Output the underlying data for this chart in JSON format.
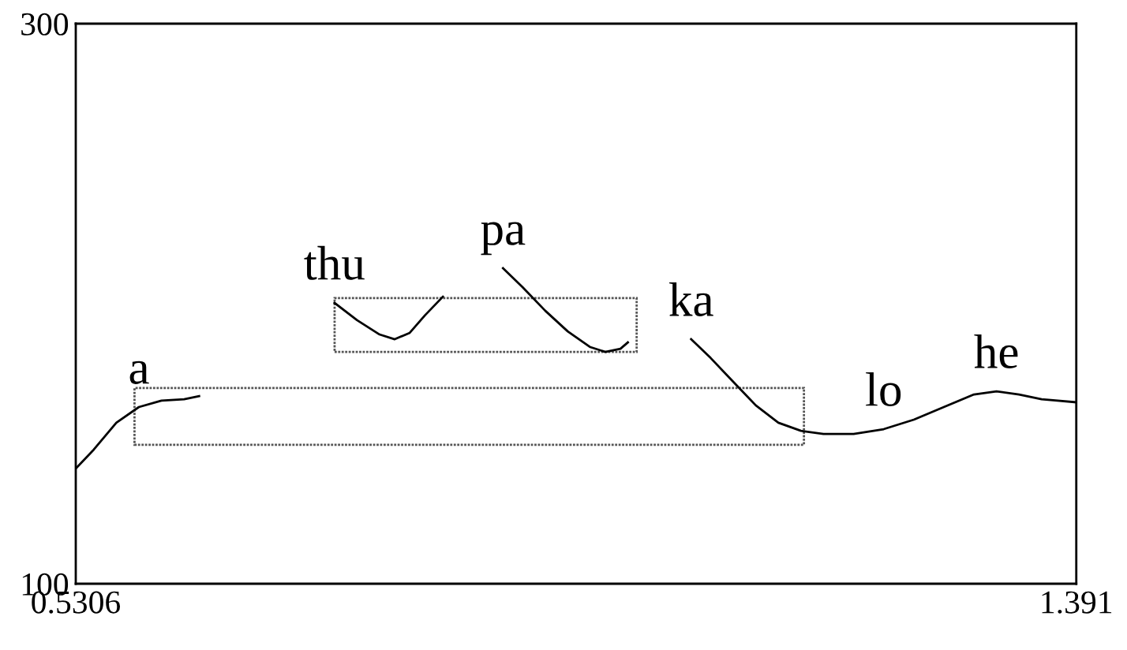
{
  "chart_data": {
    "type": "line",
    "xlim": [
      0.5306,
      1.391
    ],
    "ylim": [
      100,
      300
    ],
    "xticks": [
      0.5306,
      1.391
    ],
    "yticks": [
      100,
      300
    ],
    "grid": false,
    "marker": "none",
    "series": [
      {
        "color": "#000000",
        "line_style": "solid",
        "x": [
          0.5306,
          0.5461,
          0.5655,
          0.5849,
          0.6043,
          0.6238,
          0.6367
        ],
        "values": [
          141.1,
          147.9,
          157.5,
          163.1,
          165.4,
          165.9,
          167.0
        ]
      },
      {
        "color": "#000000",
        "line_style": "solid",
        "x": [
          0.7531,
          0.7725,
          0.7919,
          0.8049,
          0.8178,
          0.8308,
          0.8463
        ],
        "values": [
          200.3,
          194.1,
          189.0,
          187.3,
          189.6,
          195.8,
          202.5
        ]
      },
      {
        "color": "#000000",
        "line_style": "solid",
        "x": [
          0.898,
          0.9148,
          0.9343,
          0.9537,
          0.9731,
          0.986,
          0.999,
          1.0054
        ],
        "values": [
          212.7,
          205.9,
          197.5,
          190.1,
          184.5,
          182.8,
          183.9,
          186.2
        ]
      },
      {
        "color": "#000000",
        "line_style": "solid",
        "x": [
          1.0598,
          1.0766,
          1.096,
          1.1154,
          1.1348,
          1.1542,
          1.1736,
          1.1995,
          1.2254,
          1.2513,
          1.2771,
          1.303,
          1.3224,
          1.3418,
          1.3612,
          1.391
        ],
        "values": [
          187.3,
          180.6,
          172.1,
          163.7,
          157.5,
          154.6,
          153.5,
          153.5,
          155.2,
          158.6,
          163.1,
          167.6,
          168.7,
          167.6,
          165.9,
          164.8
        ]
      }
    ],
    "annotations": [
      {
        "text": "a",
        "x": 0.5849,
        "y": 163.1
      },
      {
        "text": "thu",
        "x": 0.7531,
        "y": 200.3
      },
      {
        "text": "pa",
        "x": 0.898,
        "y": 212.7
      },
      {
        "text": "ka",
        "x": 1.0598,
        "y": 187.3
      },
      {
        "text": "lo",
        "x": 1.2254,
        "y": 155.2
      },
      {
        "text": "he",
        "x": 1.3224,
        "y": 168.7
      }
    ]
  }
}
